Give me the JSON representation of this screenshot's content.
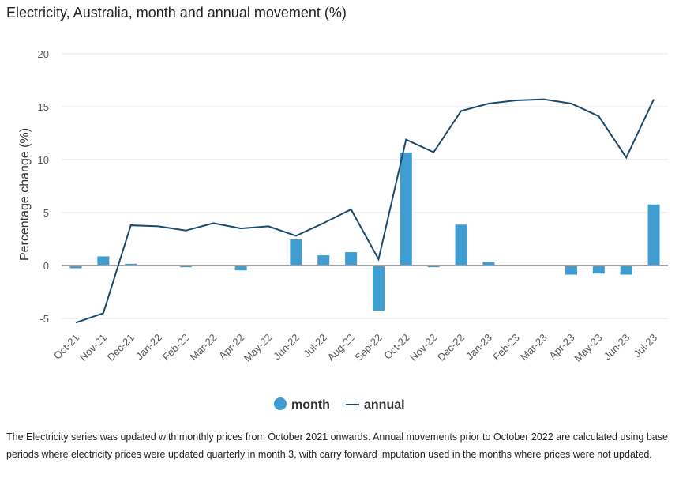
{
  "chart_data": {
    "type": "bar",
    "title": "Electricity, Australia, month and annual movement (%)",
    "xlabel": "",
    "ylabel": "Percentage change (%)",
    "ylim": [
      -6,
      21
    ],
    "yticks": [
      -5,
      0,
      5,
      10,
      15,
      20
    ],
    "grid": true,
    "legend_position": "bottom",
    "categories": [
      "Oct-21",
      "Nov-21",
      "Dec-21",
      "Jan-22",
      "Feb-22",
      "Mar-22",
      "Apr-22",
      "May-22",
      "Jun-22",
      "Jul-22",
      "Aug-22",
      "Sep-22",
      "Oct-22",
      "Nov-22",
      "Dec-22",
      "Jan-23",
      "Feb-23",
      "Mar-23",
      "Apr-23",
      "May-23",
      "Jun-23",
      "Jul-23"
    ],
    "series": [
      {
        "name": "month",
        "type": "bar",
        "color": "#3f9dd1",
        "values": [
          -0.3,
          0.9,
          0.2,
          0.0,
          -0.2,
          0.0,
          -0.5,
          0.1,
          2.5,
          1.0,
          1.3,
          -4.3,
          10.7,
          -0.2,
          3.9,
          0.4,
          0.0,
          0.0,
          -0.9,
          -0.8,
          -0.9,
          5.8
        ]
      },
      {
        "name": "annual",
        "type": "line",
        "color": "#1a4a6e",
        "values": [
          -5.4,
          -4.5,
          3.8,
          3.7,
          3.3,
          4.0,
          3.5,
          3.7,
          2.8,
          4.0,
          5.3,
          0.6,
          11.9,
          10.7,
          14.6,
          15.3,
          15.6,
          15.7,
          15.3,
          14.1,
          10.2,
          15.7
        ]
      }
    ]
  },
  "note": "The Electricity series was updated with monthly prices from October 2021 onwards. Annual movements prior to October 2022 are calculated using base periods where electricity prices were updated quarterly in month 3, with carry forward imputation used in the months where prices were not updated."
}
